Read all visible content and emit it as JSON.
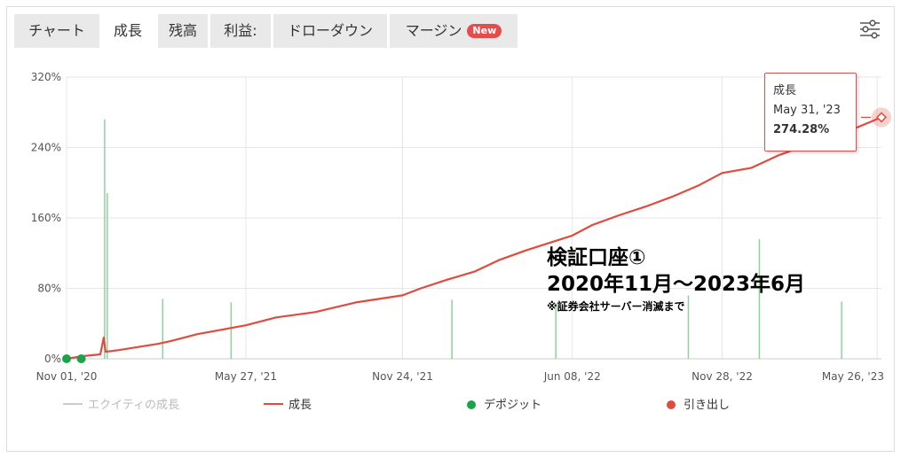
{
  "tabs": [
    {
      "label": "チャート"
    },
    {
      "label": "成長"
    },
    {
      "label": "残高"
    },
    {
      "label": "利益:"
    },
    {
      "label": "ドローダウン"
    },
    {
      "label": "マージン"
    }
  ],
  "new_badge": "New",
  "icons": {
    "settings": "sliders-icon"
  },
  "colors": {
    "growth": "#e04b3f",
    "equity": "#8fd19e",
    "deposit": "#1aa34a",
    "withdrawal": "#e04b3f",
    "grid": "#e6e6e6"
  },
  "legend": [
    {
      "label": "エクイティの成長",
      "enabled": false
    },
    {
      "label": "成長",
      "enabled": true
    },
    {
      "label": "デポジット",
      "enabled": true
    },
    {
      "label": "引き出し",
      "enabled": true
    }
  ],
  "tooltip": {
    "title": "成長",
    "date": "May 31, '23",
    "value": "274.28%"
  },
  "annotation": {
    "line1": "検証口座①",
    "line2": "2020年11月～2023年6月",
    "line3": "※証券会社サーバー消滅まで"
  },
  "chart_data": {
    "type": "line",
    "title": "",
    "xlabel": "",
    "ylabel": "",
    "ylim": [
      0,
      320
    ],
    "y_ticks": [
      "0%",
      "80%",
      "160%",
      "240%",
      "320%"
    ],
    "x_ticks": [
      "Nov 01, '20",
      "May 27, '21",
      "Nov 24, '21",
      "Jun 08, '22",
      "Nov 28, '22",
      "May 26, '23"
    ],
    "grid": true,
    "legend_position": "bottom",
    "series": [
      {
        "name": "成長",
        "x": [
          "2020-11-01",
          "2020-11-20",
          "2020-12-10",
          "2020-12-14",
          "2020-12-16",
          "2021-01-01",
          "2021-02-15",
          "2021-03-01",
          "2021-04-01",
          "2021-05-27",
          "2021-07-01",
          "2021-08-15",
          "2021-10-01",
          "2021-11-24",
          "2021-12-15",
          "2022-01-15",
          "2022-02-15",
          "2022-03-15",
          "2022-04-15",
          "2022-06-08",
          "2022-07-01",
          "2022-08-01",
          "2022-09-01",
          "2022-10-01",
          "2022-11-01",
          "2022-11-28",
          "2023-01-01",
          "2023-02-01",
          "2023-03-01",
          "2023-04-01",
          "2023-05-01",
          "2023-05-31"
        ],
        "values": [
          0,
          3,
          5,
          24,
          8,
          10,
          17,
          20,
          28,
          38,
          47,
          53,
          64,
          72,
          80,
          90,
          99,
          112,
          123,
          140,
          152,
          163,
          173,
          184,
          197,
          211,
          217,
          231,
          241,
          251,
          262,
          274.28
        ]
      },
      {
        "name": "エクイティの成長",
        "x": [
          "2020-12-15",
          "2020-12-18",
          "2021-02-20",
          "2021-05-10",
          "2022-01-20",
          "2022-05-20",
          "2022-10-20",
          "2023-01-10",
          "2023-04-15"
        ],
        "values": [
          272,
          188,
          68,
          64,
          67,
          63,
          72,
          136,
          65
        ]
      }
    ],
    "deposits": {
      "x": [
        "2020-11-01",
        "2020-11-18"
      ],
      "values": [
        0,
        0
      ]
    }
  }
}
